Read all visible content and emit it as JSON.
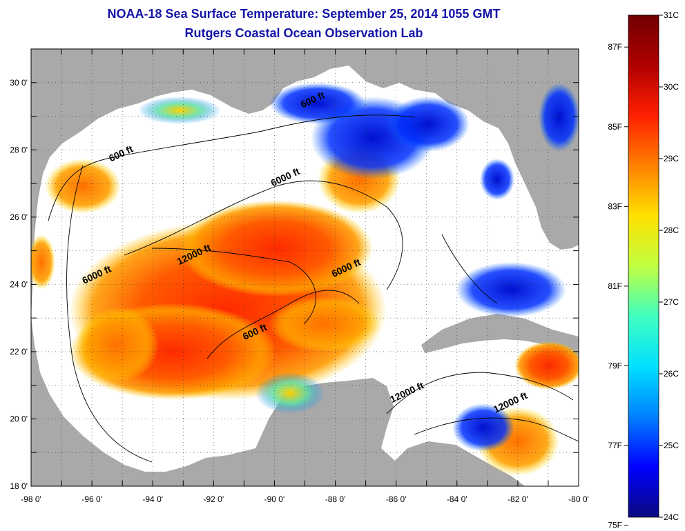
{
  "title": "NOAA-18 Sea Surface Temperature:  September 25, 2014 1055 GMT",
  "subtitle": "Rutgers Coastal Ocean Observation Lab",
  "map": {
    "lon_range": [
      -98,
      -80
    ],
    "lat_range": [
      18,
      31
    ],
    "lon_ticks": [
      "-98 0'",
      "-96 0'",
      "-94 0'",
      "-92 0'",
      "-90 0'",
      "-88 0'",
      "-86 0'",
      "-84 0'",
      "-82 0'",
      "-80 0'"
    ],
    "lat_ticks": [
      "18 0'",
      "20 0'",
      "22 0'",
      "24 0'",
      "26 0'",
      "28 0'",
      "30 0'"
    ],
    "grid": "dotted",
    "colors": {
      "land": "#a9a9a9",
      "no_data": "#ffffff",
      "contour": "#000000"
    },
    "contour_labels": [
      {
        "text": "600 ft",
        "lon": -95.0,
        "lat": 27.8
      },
      {
        "text": "600 ft",
        "lon": -88.7,
        "lat": 29.4
      },
      {
        "text": "6000 ft",
        "lon": -89.6,
        "lat": 27.1
      },
      {
        "text": "12000 ft",
        "lon": -92.6,
        "lat": 24.8
      },
      {
        "text": "6000 ft",
        "lon": -95.8,
        "lat": 24.2
      },
      {
        "text": "6000 ft",
        "lon": -87.6,
        "lat": 24.4
      },
      {
        "text": "600 ft",
        "lon": -90.6,
        "lat": 22.5
      },
      {
        "text": "12000 ft",
        "lon": -85.6,
        "lat": 20.7
      },
      {
        "text": "12000 ft",
        "lon": -82.2,
        "lat": 20.4
      }
    ]
  },
  "colorbar": {
    "gradient": [
      "#0a0a80",
      "#0000ff",
      "#0080ff",
      "#00e0ff",
      "#40ffc0",
      "#c0ff40",
      "#ffe000",
      "#ff8000",
      "#ff2000",
      "#b00000",
      "#700000"
    ],
    "celsius_ticks": [
      {
        "label": "31C",
        "value": 31
      },
      {
        "label": "30C",
        "value": 30
      },
      {
        "label": "29C",
        "value": 29
      },
      {
        "label": "28C",
        "value": 28
      },
      {
        "label": "27C",
        "value": 27
      },
      {
        "label": "26C",
        "value": 26
      },
      {
        "label": "25C",
        "value": 25
      },
      {
        "label": "24C",
        "value": 24
      }
    ],
    "fahrenheit_ticks": [
      {
        "label": "87F",
        "value": 87
      },
      {
        "label": "85F",
        "value": 85
      },
      {
        "label": "83F",
        "value": 83
      },
      {
        "label": "81F",
        "value": 81
      },
      {
        "label": "79F",
        "value": 79
      },
      {
        "label": "77F",
        "value": 77
      },
      {
        "label": "75F",
        "value": 75
      }
    ]
  }
}
